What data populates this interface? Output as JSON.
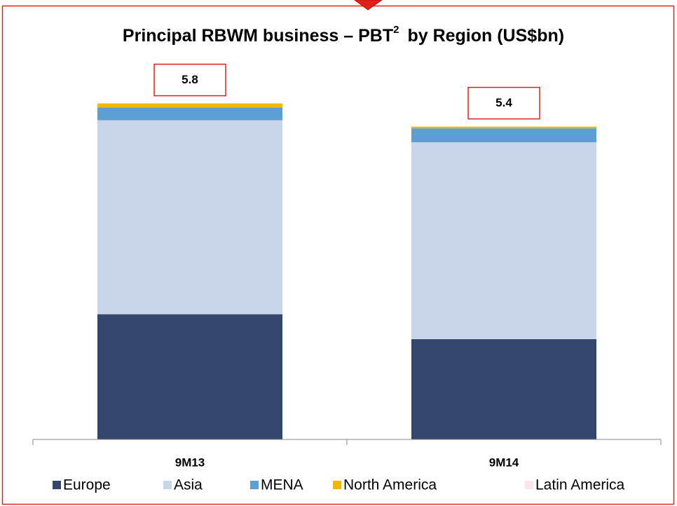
{
  "chart_data": {
    "type": "stacked_bar",
    "title": "Principal RBWM business – PBT",
    "title_superscript": "2",
    "title_suffix": "by Region (US$bn)",
    "categories": [
      "9M13",
      "9M14"
    ],
    "series": [
      {
        "name": "Europe",
        "color": "#34466b",
        "values": [
          2.16,
          1.73
        ]
      },
      {
        "name": "Asia",
        "color": "#c9d5e8",
        "values": [
          3.35,
          3.4
        ]
      },
      {
        "name": "MENA",
        "color": "#5b9fd4",
        "values": [
          0.22,
          0.24
        ]
      },
      {
        "name": "North America",
        "color": "#f2b800",
        "values": [
          0.07,
          0.03
        ]
      },
      {
        "name": "Latin America",
        "color": "#fde6e8",
        "values": [
          0,
          0
        ]
      }
    ],
    "totals": [
      5.8,
      5.4
    ],
    "ylim": [
      0,
      6.4
    ]
  }
}
